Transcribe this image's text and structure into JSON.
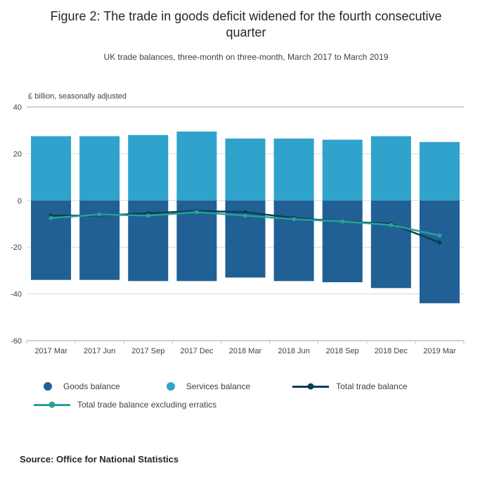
{
  "header": {
    "title": "Figure 2: The trade in goods deficit widened for the fourth consecutive quarter",
    "subtitle": "UK trade balances, three-month on three-month, March 2017 to March 2019"
  },
  "chart_data": {
    "type": "bar",
    "subtype": "stacked-bars-with-lines",
    "unit_label": "£ billion, seasonally adjusted",
    "categories": [
      "2017 Mar",
      "2017 Jun",
      "2017 Sep",
      "2017 Dec",
      "2018 Mar",
      "2018 Jun",
      "2018 Sep",
      "2018 Dec",
      "2019 Mar"
    ],
    "bar_series": [
      {
        "name": "Goods balance",
        "color": "#206095",
        "values": [
          -34,
          -34,
          -34.5,
          -34.5,
          -33,
          -34.5,
          -35,
          -37.5,
          -44
        ]
      },
      {
        "name": "Services balance",
        "color": "#2fa3cb",
        "values": [
          27.5,
          27.5,
          28,
          29.5,
          26.5,
          26.5,
          26,
          27.5,
          25
        ]
      }
    ],
    "line_series": [
      {
        "name": "Total trade balance",
        "color": "#0c3c55",
        "values": [
          -6.5,
          -6.5,
          -5.5,
          -4.5,
          -5,
          -7.5,
          -9,
          -10,
          -18
        ]
      },
      {
        "name": "Total trade balance excluding erratics",
        "color": "#28a197",
        "values": [
          -7.5,
          -6,
          -6.5,
          -5,
          -6.5,
          -8,
          -9,
          -10.5,
          -15
        ]
      }
    ],
    "ylim": [
      -60,
      40
    ],
    "yticks": [
      40,
      20,
      0,
      -20,
      -40,
      -60
    ],
    "grid": true,
    "legend_position": "bottom"
  },
  "source": {
    "text": "Source: Office for National Statistics"
  }
}
